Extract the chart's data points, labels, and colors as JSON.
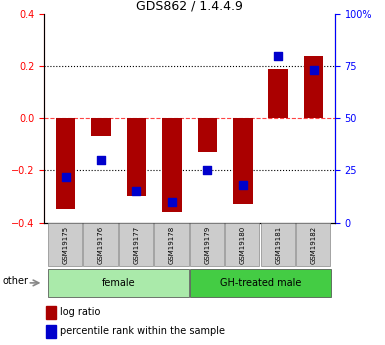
{
  "title": "GDS862 / 1.4.4.9",
  "samples": [
    "GSM19175",
    "GSM19176",
    "GSM19177",
    "GSM19178",
    "GSM19179",
    "GSM19180",
    "GSM19181",
    "GSM19182"
  ],
  "log_ratio": [
    -0.35,
    -0.07,
    -0.3,
    -0.36,
    -0.13,
    -0.33,
    0.19,
    0.24
  ],
  "percentile": [
    22,
    30,
    15,
    10,
    25,
    18,
    80,
    73
  ],
  "ylim_left": [
    -0.4,
    0.4
  ],
  "ylim_right": [
    0,
    100
  ],
  "yticks_left": [
    -0.4,
    -0.2,
    0.0,
    0.2,
    0.4
  ],
  "yticks_right": [
    0,
    25,
    50,
    75,
    100
  ],
  "ytick_labels_right": [
    "0",
    "25",
    "50",
    "75",
    "100%"
  ],
  "groups": [
    {
      "label": "female",
      "start": 0,
      "end": 3,
      "color": "#AAEAAA"
    },
    {
      "label": "GH-treated male",
      "start": 4,
      "end": 7,
      "color": "#44CC44"
    }
  ],
  "bar_color": "#AA0000",
  "dot_color": "#0000CC",
  "zero_line_color": "#FF4444",
  "dotted_line_color": "#000000",
  "tick_box_color": "#CCCCCC",
  "background_color": "#FFFFFF",
  "bar_width": 0.55,
  "dot_size": 28,
  "legend_log_ratio_color": "#AA0000",
  "legend_pct_color": "#0000CC",
  "title_fontsize": 9
}
